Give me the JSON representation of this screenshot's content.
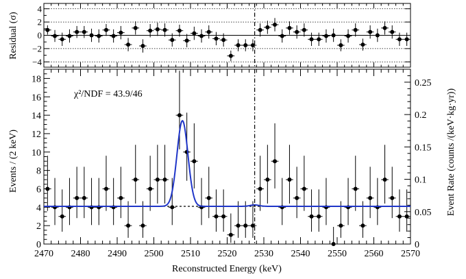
{
  "chart_data": [
    {
      "type": "scatter",
      "title": "",
      "ylabel": "Residual (σ)",
      "xlim": [
        2470,
        2570
      ],
      "ylim": [
        -4.8,
        4.8
      ],
      "yticks": [
        -4,
        -2,
        0,
        2,
        4
      ],
      "ytick_labels": [
        "−4",
        "−2",
        "0",
        "2",
        "4"
      ],
      "dotted_levels": [
        -4,
        -2,
        2,
        4
      ],
      "zero_line": 0,
      "vline_x": 2527.5,
      "series": [
        {
          "x": [
            2471,
            2473,
            2475,
            2477,
            2479,
            2481,
            2483,
            2485,
            2487,
            2489,
            2491,
            2493,
            2495,
            2497,
            2499,
            2501,
            2503,
            2505,
            2507,
            2509,
            2511,
            2513,
            2515,
            2517,
            2519,
            2521,
            2523,
            2525,
            2527,
            2529,
            2531,
            2533,
            2535,
            2537,
            2539,
            2541,
            2543,
            2545,
            2547,
            2549,
            2551,
            2553,
            2555,
            2557,
            2559,
            2561,
            2563,
            2565,
            2567,
            2569
          ],
          "y": [
            0.8,
            -0.1,
            -0.6,
            -0.1,
            0.5,
            0.5,
            0.0,
            -0.1,
            0.8,
            -0.1,
            0.4,
            -1.4,
            1.1,
            -1.6,
            0.7,
            0.9,
            0.8,
            -0.7,
            0.7,
            -0.8,
            0.3,
            -0.1,
            0.5,
            -0.5,
            -0.7,
            -3.1,
            -1.5,
            -1.5,
            -1.5,
            0.8,
            1.2,
            1.6,
            -0.1,
            1.1,
            0.5,
            0.8,
            -0.6,
            -0.6,
            -0.1,
            0.0,
            -1.5,
            -0.1,
            0.8,
            -1.4,
            0.5,
            0.0,
            1.1,
            0.5,
            -0.6,
            -0.6
          ],
          "err": [
            0.7,
            0.9,
            1.0,
            1.0,
            0.9,
            0.9,
            1.0,
            1.0,
            0.9,
            1.0,
            1.0,
            1.0,
            1.0,
            1.0,
            1.0,
            1.0,
            1.0,
            1.0,
            0.9,
            1.0,
            1.0,
            1.0,
            1.0,
            1.0,
            1.0,
            0.8,
            0.9,
            0.9,
            0.9,
            1.0,
            1.0,
            1.0,
            1.0,
            1.0,
            1.0,
            1.0,
            1.0,
            1.0,
            1.0,
            1.0,
            0.9,
            1.0,
            1.0,
            0.9,
            1.0,
            1.0,
            1.0,
            1.0,
            1.0,
            1.0
          ]
        }
      ]
    },
    {
      "type": "scatter",
      "title": "",
      "xlabel": "Reconstructed Energy (keV)",
      "ylabel": "Events / (2 keV)",
      "ylabel_right": "Event Rate (counts /(keV·kg·yr))",
      "annotation": "χ²/NDF = 43.9/46",
      "xlim": [
        2470,
        2570
      ],
      "ylim": [
        0,
        19
      ],
      "ylim_right": [
        0,
        0.27
      ],
      "xticks": [
        2470,
        2480,
        2490,
        2500,
        2510,
        2520,
        2530,
        2540,
        2550,
        2560,
        2570
      ],
      "yticks": [
        0,
        2,
        4,
        6,
        8,
        10,
        12,
        14,
        16,
        18
      ],
      "yticks_right": [
        0,
        0.05,
        0.1,
        0.15,
        0.2,
        0.25
      ],
      "ytick_labels_right": [
        "0",
        "0.05",
        "0.1",
        "0.15",
        "0.2",
        "0.25"
      ],
      "vline_x": 2527.5,
      "background_level": 4.1,
      "fit_peak": {
        "mean": 2507.8,
        "sigma": 1.5,
        "amplitude": 9.3
      },
      "series": [
        {
          "x": [
            2471,
            2473,
            2475,
            2477,
            2479,
            2481,
            2483,
            2485,
            2487,
            2489,
            2491,
            2493,
            2495,
            2497,
            2499,
            2501,
            2503,
            2505,
            2507,
            2509,
            2511,
            2513,
            2515,
            2517,
            2519,
            2521,
            2523,
            2525,
            2527,
            2529,
            2531,
            2533,
            2535,
            2537,
            2539,
            2541,
            2543,
            2545,
            2547,
            2549,
            2551,
            2553,
            2555,
            2557,
            2559,
            2561,
            2563,
            2565,
            2567,
            2569
          ],
          "y": [
            6,
            4,
            3,
            4,
            5,
            5,
            4,
            4,
            6,
            4,
            5,
            2,
            7,
            2,
            6,
            7,
            7,
            4,
            14,
            10,
            9,
            4,
            5,
            3,
            3,
            1,
            2,
            2,
            2,
            6,
            7,
            9,
            4,
            7,
            5,
            6,
            3,
            3,
            4,
            0,
            2,
            4,
            6,
            2,
            5,
            4,
            7,
            5,
            3,
            3
          ]
        }
      ]
    }
  ]
}
